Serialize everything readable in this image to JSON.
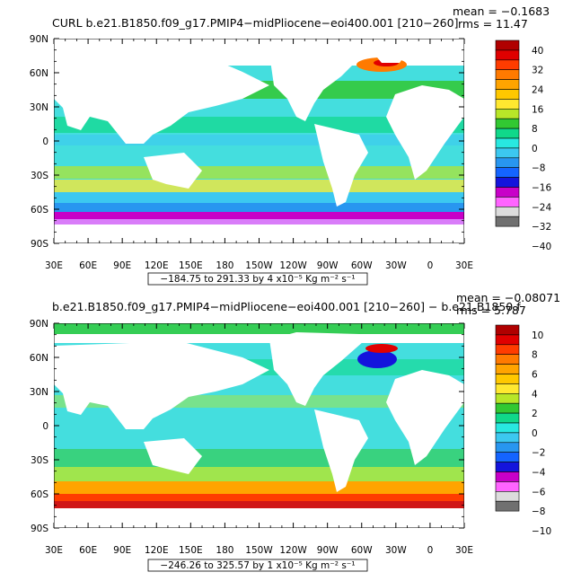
{
  "chart_data": [
    {
      "type": "heatmap",
      "title": "CURL  b.e21.B1850.f09_g17.PMIP4−midPliocene−eoi400.001  [210−260]",
      "stat_mean": "mean = −0.1683",
      "stat_rms": "rms = 11.47",
      "x_ticks": [
        "30E",
        "60E",
        "90E",
        "120E",
        "150E",
        "180",
        "150W",
        "120W",
        "90W",
        "60W",
        "30W",
        "0",
        "30E"
      ],
      "y_ticks": [
        "90N",
        "60N",
        "30N",
        "0",
        "30S",
        "60S",
        "90S"
      ],
      "colorbar_labels": [
        "40",
        "32",
        "24",
        "16",
        "8",
        "0",
        "−8",
        "−16",
        "−24",
        "−32",
        "−40"
      ],
      "range_note": "−184.75 to 291.33 by 4 x10⁻⁵ Kg m⁻² s⁻¹"
    },
    {
      "type": "heatmap",
      "title": "b.e21.B1850.f09_g17.PMIP4−midPliocene−eoi400.001  [210−260] − b.e21.B1850.f",
      "stat_mean": "mean = −0.08071",
      "stat_rms": "rms = 5.787",
      "x_ticks": [
        "30E",
        "60E",
        "90E",
        "120E",
        "150E",
        "180",
        "150W",
        "120W",
        "90W",
        "60W",
        "30W",
        "0",
        "30E"
      ],
      "y_ticks": [
        "90N",
        "60N",
        "30N",
        "0",
        "30S",
        "60S",
        "90S"
      ],
      "colorbar_labels": [
        "10",
        "8",
        "6",
        "4",
        "2",
        "0",
        "−2",
        "−4",
        "−6",
        "−8",
        "−10"
      ],
      "range_note": "−246.26 to 325.57 by 1 x10⁻⁵ Kg m⁻² s⁻¹"
    }
  ],
  "colors": {
    "land": "#ffffff",
    "colorbar": [
      "#b00000",
      "#e00000",
      "#ff3c00",
      "#ff7a00",
      "#ffa400",
      "#ffc800",
      "#ffe830",
      "#b8e628",
      "#32c832",
      "#10d88a",
      "#28e8e0",
      "#3cc8f0",
      "#2896f0",
      "#1464ff",
      "#1414dc",
      "#c800c8",
      "#ff64ff",
      "#dcdcdc",
      "#707070"
    ]
  }
}
